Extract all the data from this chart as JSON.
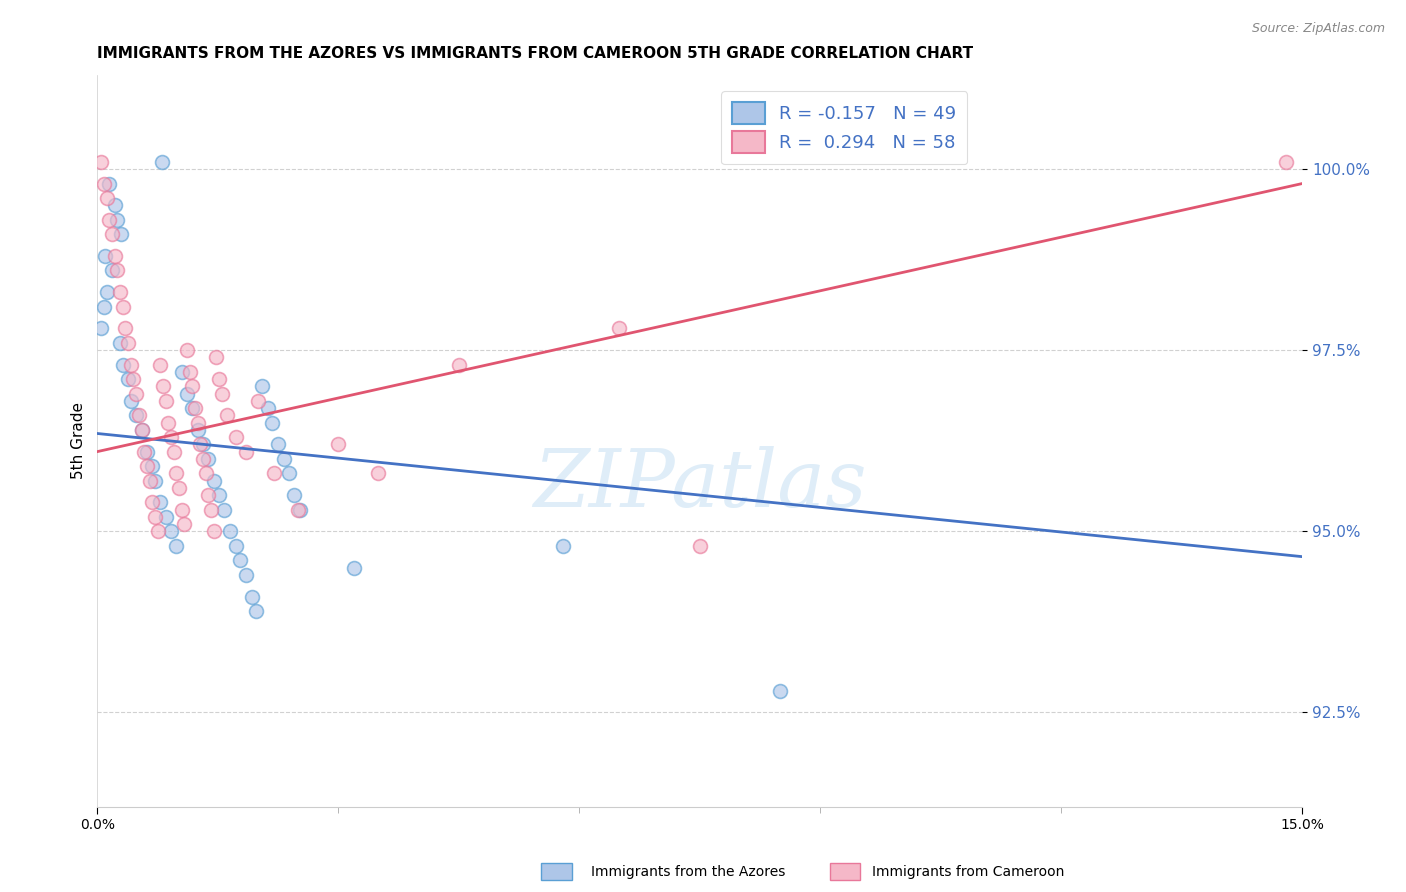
{
  "title": "IMMIGRANTS FROM THE AZORES VS IMMIGRANTS FROM CAMEROON 5TH GRADE CORRELATION CHART",
  "source": "Source: ZipAtlas.com",
  "ylabel": "5th Grade",
  "yticks": [
    92.5,
    95.0,
    97.5,
    100.0
  ],
  "ytick_labels": [
    "92.5%",
    "95.0%",
    "97.5%",
    "100.0%"
  ],
  "xlim": [
    0.0,
    15.0
  ],
  "ylim": [
    91.2,
    101.3
  ],
  "legend_r_blue": "-0.157",
  "legend_n_blue": "49",
  "legend_r_pink": "0.294",
  "legend_n_pink": "58",
  "blue_fill": "#aec6e8",
  "pink_fill": "#f5b8c8",
  "blue_edge": "#5a9fd4",
  "pink_edge": "#e8789a",
  "blue_line": "#4472c4",
  "pink_line": "#e05570",
  "legend_label_blue": "Immigrants from the Azores",
  "legend_label_pink": "Immigrants from Cameroon",
  "blue_points_x": [
    0.8,
    0.15,
    0.22,
    0.25,
    0.3,
    0.1,
    0.18,
    0.12,
    0.08,
    0.05,
    0.28,
    0.32,
    0.38,
    0.42,
    0.48,
    0.55,
    0.62,
    0.68,
    0.72,
    0.78,
    0.85,
    0.92,
    0.98,
    1.05,
    1.12,
    1.18,
    1.25,
    1.32,
    1.38,
    1.45,
    1.52,
    1.58,
    1.65,
    1.72,
    1.78,
    1.85,
    1.92,
    1.98,
    2.05,
    2.12,
    2.18,
    2.25,
    2.32,
    2.38,
    2.45,
    2.52,
    3.2,
    5.8,
    8.5
  ],
  "blue_points_y": [
    100.1,
    99.8,
    99.5,
    99.3,
    99.1,
    98.8,
    98.6,
    98.3,
    98.1,
    97.8,
    97.6,
    97.3,
    97.1,
    96.8,
    96.6,
    96.4,
    96.1,
    95.9,
    95.7,
    95.4,
    95.2,
    95.0,
    94.8,
    97.2,
    96.9,
    96.7,
    96.4,
    96.2,
    96.0,
    95.7,
    95.5,
    95.3,
    95.0,
    94.8,
    94.6,
    94.4,
    94.1,
    93.9,
    97.0,
    96.7,
    96.5,
    96.2,
    96.0,
    95.8,
    95.5,
    95.3,
    94.5,
    94.8,
    92.8
  ],
  "pink_points_x": [
    0.05,
    0.08,
    0.12,
    0.15,
    0.18,
    0.22,
    0.25,
    0.28,
    0.32,
    0.35,
    0.38,
    0.42,
    0.45,
    0.48,
    0.52,
    0.55,
    0.58,
    0.62,
    0.65,
    0.68,
    0.72,
    0.75,
    0.78,
    0.82,
    0.85,
    0.88,
    0.92,
    0.95,
    0.98,
    1.02,
    1.05,
    1.08,
    1.12,
    1.15,
    1.18,
    1.22,
    1.25,
    1.28,
    1.32,
    1.35,
    1.38,
    1.42,
    1.45,
    1.48,
    1.52,
    1.55,
    1.62,
    1.72,
    1.85,
    2.0,
    2.2,
    2.5,
    3.0,
    3.5,
    4.5,
    6.5,
    7.5,
    14.8
  ],
  "pink_points_y": [
    100.1,
    99.8,
    99.6,
    99.3,
    99.1,
    98.8,
    98.6,
    98.3,
    98.1,
    97.8,
    97.6,
    97.3,
    97.1,
    96.9,
    96.6,
    96.4,
    96.1,
    95.9,
    95.7,
    95.4,
    95.2,
    95.0,
    97.3,
    97.0,
    96.8,
    96.5,
    96.3,
    96.1,
    95.8,
    95.6,
    95.3,
    95.1,
    97.5,
    97.2,
    97.0,
    96.7,
    96.5,
    96.2,
    96.0,
    95.8,
    95.5,
    95.3,
    95.0,
    97.4,
    97.1,
    96.9,
    96.6,
    96.3,
    96.1,
    96.8,
    95.8,
    95.3,
    96.2,
    95.8,
    97.3,
    97.8,
    94.8,
    100.1
  ],
  "blue_trendline_x": [
    0.0,
    15.0
  ],
  "blue_trendline_y": [
    96.35,
    94.65
  ],
  "pink_trendline_x": [
    0.0,
    15.0
  ],
  "pink_trendline_y": [
    96.1,
    99.8
  ],
  "watermark_text": "ZIPatlas",
  "background_color": "#ffffff",
  "grid_color": "#cccccc",
  "title_fontsize": 11,
  "legend_fontsize": 13,
  "marker_size": 100,
  "marker_alpha": 0.65
}
